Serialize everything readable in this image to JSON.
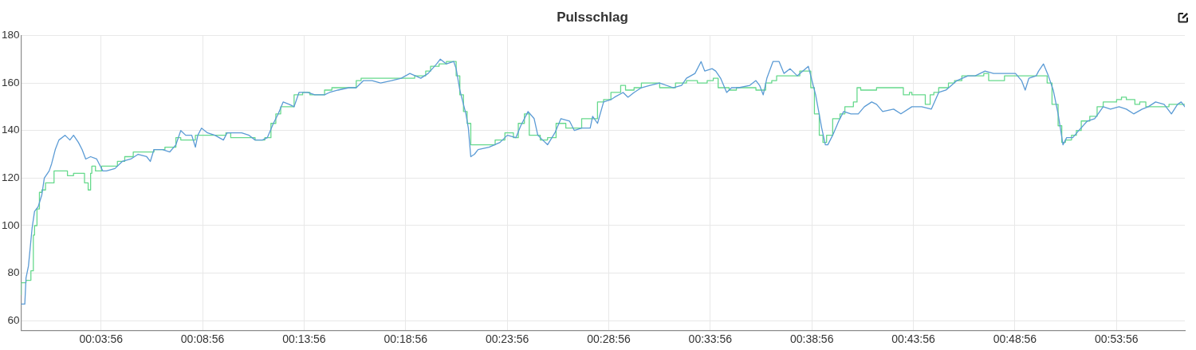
{
  "chart_data": {
    "type": "line",
    "title": "Pulsschlag",
    "xlim": [
      0,
      0.955
    ],
    "xticks": [
      {
        "value": 0.06556,
        "label": "00:03:56"
      },
      {
        "value": 0.14889,
        "label": "00:08:56"
      },
      {
        "value": 0.23222,
        "label": "00:13:56"
      },
      {
        "value": 0.31556,
        "label": "00:18:56"
      },
      {
        "value": 0.39889,
        "label": "00:23:56"
      },
      {
        "value": 0.48222,
        "label": "00:28:56"
      },
      {
        "value": 0.56556,
        "label": "00:33:56"
      },
      {
        "value": 0.64889,
        "label": "00:38:56"
      },
      {
        "value": 0.73222,
        "label": "00:43:56"
      },
      {
        "value": 0.81556,
        "label": "00:48:56"
      },
      {
        "value": 0.89889,
        "label": "00:53:56"
      }
    ],
    "ylim": [
      56,
      180
    ],
    "yticks": [
      60,
      80,
      100,
      120,
      140,
      160,
      180
    ],
    "grid": true,
    "legend": false,
    "marker": "none",
    "line_style": "solid",
    "series": [
      {
        "type": "line",
        "color": "#5b9bd5",
        "x": [
          0,
          0.003,
          0.004,
          0.006,
          0.009,
          0.011,
          0.014,
          0.017,
          0.019,
          0.023,
          0.025,
          0.028,
          0.031,
          0.036,
          0.04,
          0.043,
          0.047,
          0.05,
          0.053,
          0.057,
          0.062,
          0.065,
          0.067,
          0.07,
          0.077,
          0.083,
          0.09,
          0.096,
          0.103,
          0.106,
          0.109,
          0.116,
          0.122,
          0.127,
          0.131,
          0.135,
          0.14,
          0.143,
          0.145,
          0.148,
          0.153,
          0.159,
          0.166,
          0.169,
          0.174,
          0.181,
          0.187,
          0.192,
          0.198,
          0.202,
          0.207,
          0.211,
          0.215,
          0.22,
          0.224,
          0.228,
          0.235,
          0.241,
          0.249,
          0.253,
          0.26,
          0.269,
          0.275,
          0.281,
          0.288,
          0.295,
          0.304,
          0.312,
          0.319,
          0.328,
          0.334,
          0.341,
          0.344,
          0.349,
          0.355,
          0.357,
          0.36,
          0.365,
          0.367,
          0.369,
          0.372,
          0.375,
          0.384,
          0.393,
          0.399,
          0.406,
          0.41,
          0.416,
          0.421,
          0.424,
          0.428,
          0.432,
          0.438,
          0.443,
          0.45,
          0.454,
          0.46,
          0.467,
          0.469,
          0.473,
          0.478,
          0.484,
          0.487,
          0.494,
          0.498,
          0.503,
          0.509,
          0.516,
          0.524,
          0.535,
          0.542,
          0.546,
          0.553,
          0.558,
          0.561,
          0.567,
          0.57,
          0.574,
          0.579,
          0.583,
          0.589,
          0.598,
          0.603,
          0.606,
          0.609,
          0.612,
          0.617,
          0.622,
          0.626,
          0.631,
          0.637,
          0.646,
          0.648,
          0.652,
          0.657,
          0.66,
          0.662,
          0.666,
          0.671,
          0.675,
          0.681,
          0.687,
          0.692,
          0.698,
          0.702,
          0.707,
          0.716,
          0.722,
          0.731,
          0.739,
          0.747,
          0.753,
          0.759,
          0.768,
          0.777,
          0.783,
          0.791,
          0.798,
          0.807,
          0.816,
          0.821,
          0.824,
          0.827,
          0.833,
          0.835,
          0.839,
          0.843,
          0.847,
          0.851,
          0.855,
          0.858,
          0.863,
          0.868,
          0.875,
          0.881,
          0.888,
          0.894,
          0.901,
          0.907,
          0.913,
          0.92,
          0.925,
          0.931,
          0.938,
          0.944,
          0.949,
          0.952,
          0.955
        ],
        "values": [
          67,
          67,
          78,
          83,
          99,
          106,
          108,
          113,
          120,
          123,
          126,
          132,
          136,
          138,
          136,
          138,
          135,
          132,
          128,
          129,
          128,
          125,
          123,
          123,
          124,
          127,
          128,
          130,
          129,
          127,
          132,
          132,
          131,
          134,
          140,
          138,
          138,
          133,
          138,
          141,
          139,
          138,
          136,
          139,
          139,
          139,
          138,
          136,
          136,
          137,
          143,
          147,
          152,
          151,
          150,
          156,
          156,
          155,
          155,
          156,
          157,
          158,
          158,
          161,
          161,
          160,
          161,
          162,
          164,
          162,
          164,
          168,
          170,
          168,
          169,
          166,
          157,
          147,
          141,
          129,
          130,
          132,
          133,
          135,
          138,
          137,
          142,
          148,
          145,
          138,
          136,
          134,
          139,
          145,
          144,
          140,
          141,
          141,
          146,
          143,
          152,
          153,
          154,
          156,
          154,
          156,
          158,
          159,
          160,
          158,
          159,
          162,
          164,
          169,
          165,
          166,
          165,
          162,
          156,
          158,
          158,
          159,
          161,
          159,
          155,
          162,
          169,
          169,
          164,
          166,
          163,
          167,
          163,
          155,
          141,
          134,
          134,
          138,
          144,
          148,
          147,
          147,
          150,
          152,
          151,
          148,
          149,
          147,
          150,
          150,
          149,
          156,
          157,
          161,
          163,
          163,
          165,
          164,
          164,
          164,
          161,
          157,
          162,
          163,
          165,
          168,
          163,
          157,
          147,
          134,
          137,
          137,
          140,
          144,
          145,
          150,
          149,
          150,
          149,
          147,
          149,
          150,
          152,
          151,
          147,
          151,
          152,
          150
        ]
      },
      {
        "type": "step",
        "color": "#66d98c",
        "x": [
          0,
          0.004,
          0.008,
          0.01,
          0.011,
          0.013,
          0.015,
          0.017,
          0.02,
          0.027,
          0.03,
          0.038,
          0.043,
          0.049,
          0.052,
          0.055,
          0.057,
          0.058,
          0.061,
          0.066,
          0.079,
          0.085,
          0.092,
          0.109,
          0.118,
          0.127,
          0.131,
          0.143,
          0.148,
          0.163,
          0.168,
          0.172,
          0.192,
          0.2,
          0.205,
          0.209,
          0.213,
          0.218,
          0.224,
          0.231,
          0.237,
          0.249,
          0.255,
          0.275,
          0.279,
          0.315,
          0.323,
          0.332,
          0.336,
          0.343,
          0.349,
          0.357,
          0.36,
          0.363,
          0.366,
          0.369,
          0.372,
          0.389,
          0.397,
          0.404,
          0.408,
          0.413,
          0.417,
          0.426,
          0.432,
          0.439,
          0.441,
          0.447,
          0.46,
          0.473,
          0.478,
          0.484,
          0.492,
          0.496,
          0.503,
          0.509,
          0.524,
          0.537,
          0.546,
          0.555,
          0.563,
          0.568,
          0.572,
          0.581,
          0.587,
          0.603,
          0.611,
          0.616,
          0.62,
          0.639,
          0.648,
          0.651,
          0.655,
          0.658,
          0.661,
          0.666,
          0.672,
          0.676,
          0.683,
          0.686,
          0.689,
          0.702,
          0.724,
          0.729,
          0.731,
          0.742,
          0.746,
          0.749,
          0.753,
          0.761,
          0.766,
          0.772,
          0.781,
          0.79,
          0.794,
          0.807,
          0.818,
          0.829,
          0.842,
          0.846,
          0.851,
          0.854,
          0.857,
          0.862,
          0.866,
          0.87,
          0.877,
          0.883,
          0.888,
          0.892,
          0.899,
          0.903,
          0.907,
          0.914,
          0.918,
          0.923,
          0.942,
          0.955
        ],
        "values": [
          71,
          76,
          77,
          81,
          96,
          100,
          107,
          114,
          115,
          118,
          123,
          123,
          121,
          122,
          122,
          118,
          115,
          122,
          125,
          123,
          125,
          127,
          129,
          131,
          132,
          133,
          137,
          136,
          138,
          138,
          138,
          139,
          137,
          136,
          137,
          143,
          147,
          150,
          150,
          155,
          156,
          155,
          157,
          158,
          161,
          162,
          162,
          163,
          165,
          167,
          168,
          169,
          163,
          155,
          148,
          143,
          134,
          134,
          136,
          139,
          137,
          143,
          147,
          138,
          136,
          137,
          143,
          143,
          141,
          145,
          152,
          153,
          156,
          159,
          157,
          158,
          160,
          158,
          160,
          161,
          160,
          161,
          162,
          158,
          157,
          158,
          157,
          160,
          161,
          163,
          165,
          158,
          147,
          138,
          135,
          138,
          145,
          147,
          150,
          152,
          158,
          157,
          158,
          155,
          156,
          155,
          151,
          155,
          156,
          158,
          160,
          161,
          163,
          163,
          164,
          161,
          163,
          163,
          163,
          160,
          151,
          142,
          135,
          136,
          138,
          140,
          144,
          146,
          150,
          152,
          152,
          153,
          154,
          153,
          151,
          152,
          150,
          151
        ]
      }
    ]
  }
}
